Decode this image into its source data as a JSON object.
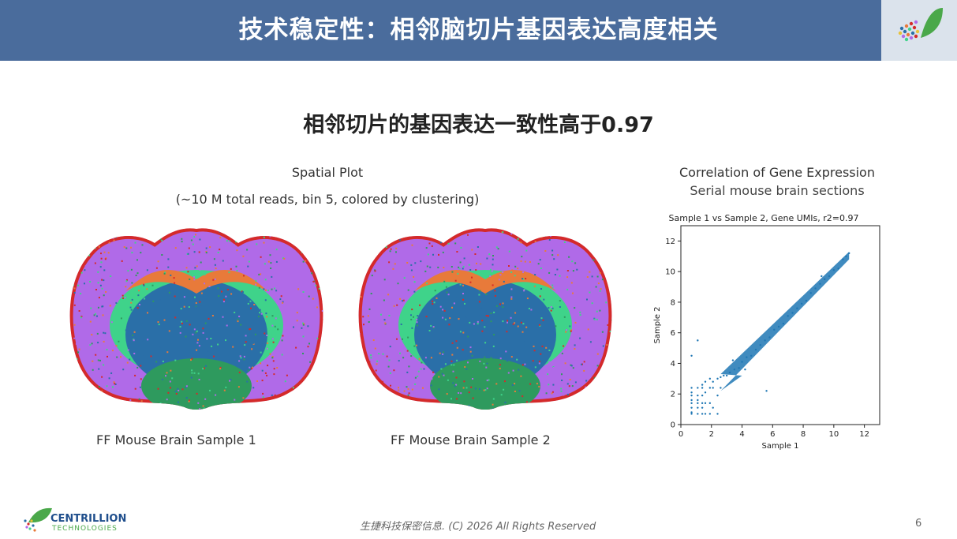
{
  "header": {
    "title": "技术稳定性：相邻脑切片基因表达高度相关",
    "logo_icon": "leaf-dots-logo-icon",
    "color": "#4a6c9c"
  },
  "subtitle": "相邻切片的基因表达一致性高于0.97",
  "spatial": {
    "title": "Spatial Plot",
    "subtitle": "(~10 M total reads, bin 5, colored by clustering)",
    "caption_1": "FF Mouse Brain Sample 1",
    "caption_2": "FF Mouse Brain Sample 2",
    "cluster_colors": [
      "#b06ae8",
      "#e87a3a",
      "#3fd38a",
      "#2a6fa8",
      "#d42a2a",
      "#2e9a5e"
    ]
  },
  "correlation": {
    "title": "Correlation of Gene Expression",
    "subtitle": "Serial mouse brain sections"
  },
  "chart_data": {
    "type": "scatter",
    "title": "Sample 1 vs Sample 2, Gene UMIs, r2=0.97",
    "xlabel": "Sample 1",
    "ylabel": "Sample 2",
    "xlim": [
      0,
      13
    ],
    "ylim": [
      0,
      13
    ],
    "xticks": [
      "0",
      "2",
      "4",
      "6",
      "8",
      "10",
      "12"
    ],
    "yticks": [
      "0",
      "2",
      "4",
      "6",
      "8",
      "10",
      "12"
    ],
    "series": [
      {
        "color": "#1f77b4",
        "points": [
          [
            0.7,
            0.7
          ],
          [
            0.7,
            0.8
          ],
          [
            0.7,
            1.1
          ],
          [
            0.7,
            1.4
          ],
          [
            0.7,
            1.6
          ],
          [
            0.7,
            1.9
          ],
          [
            0.7,
            2.1
          ],
          [
            0.7,
            2.4
          ],
          [
            1.1,
            0.7
          ],
          [
            1.1,
            1.1
          ],
          [
            1.1,
            1.4
          ],
          [
            1.1,
            1.6
          ],
          [
            1.1,
            1.9
          ],
          [
            1.1,
            2.4
          ],
          [
            1.1,
            5.5
          ],
          [
            1.4,
            0.7
          ],
          [
            1.4,
            1.1
          ],
          [
            1.4,
            1.4
          ],
          [
            1.4,
            1.9
          ],
          [
            1.4,
            2.4
          ],
          [
            1.4,
            2.6
          ],
          [
            1.6,
            0.7
          ],
          [
            1.6,
            1.4
          ],
          [
            1.6,
            2.1
          ],
          [
            1.6,
            2.8
          ],
          [
            1.9,
            0.7
          ],
          [
            1.9,
            1.4
          ],
          [
            1.9,
            2.4
          ],
          [
            1.9,
            3.0
          ],
          [
            2.1,
            1.1
          ],
          [
            2.1,
            2.4
          ],
          [
            2.1,
            2.8
          ],
          [
            2.4,
            0.7
          ],
          [
            2.4,
            1.9
          ],
          [
            2.4,
            3.0
          ],
          [
            2.6,
            2.4
          ],
          [
            2.6,
            3.1
          ],
          [
            0.7,
            4.5
          ],
          [
            2.8,
            3.2
          ],
          [
            3.0,
            3.2
          ],
          [
            3.2,
            3.4
          ],
          [
            3.5,
            3.6
          ],
          [
            3.8,
            3.7
          ],
          [
            4.0,
            4.1
          ],
          [
            4.3,
            4.4
          ],
          [
            4.6,
            4.5
          ],
          [
            4.9,
            4.9
          ],
          [
            5.2,
            5.2
          ],
          [
            5.5,
            5.5
          ],
          [
            5.8,
            5.7
          ],
          [
            6.1,
            6.2
          ],
          [
            6.4,
            6.4
          ],
          [
            6.7,
            6.6
          ],
          [
            7.0,
            7.1
          ],
          [
            7.3,
            7.3
          ],
          [
            7.6,
            7.6
          ],
          [
            7.9,
            7.9
          ],
          [
            8.2,
            8.1
          ],
          [
            8.5,
            8.6
          ],
          [
            8.8,
            8.9
          ],
          [
            9.1,
            9.2
          ],
          [
            9.4,
            9.5
          ],
          [
            9.7,
            9.7
          ],
          [
            10.0,
            10.1
          ],
          [
            10.3,
            10.2
          ],
          [
            10.6,
            10.8
          ],
          [
            10.8,
            11.0
          ],
          [
            11.0,
            11.2
          ],
          [
            5.6,
            2.2
          ],
          [
            9.2,
            9.7
          ],
          [
            3.4,
            4.2
          ],
          [
            4.2,
            3.6
          ]
        ]
      }
    ]
  },
  "footer": {
    "logo_text_1": "CENTRILLION",
    "logo_text_2": "TECHNOLOGIES",
    "copyright": "生捷科技保密信息. (C) 2026 All Rights Reserved",
    "page": "6"
  }
}
